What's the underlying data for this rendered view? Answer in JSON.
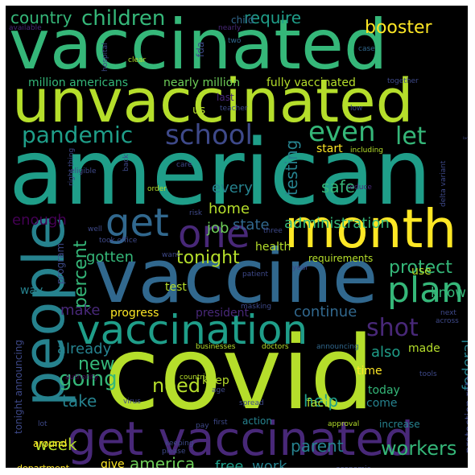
{
  "colors": {
    "background": "#000000",
    "palette": [
      "#440154",
      "#482878",
      "#3e4989",
      "#31688e",
      "#26828e",
      "#1f9e89",
      "#35b779",
      "#6ece58",
      "#b5de2b",
      "#fde725"
    ]
  },
  "words": [
    {
      "text": "vaccinated",
      "color": "#35b779"
    },
    {
      "text": "unvaccinated",
      "color": "#b5de2b"
    },
    {
      "text": "american",
      "color": "#1f9e89"
    },
    {
      "text": "covid",
      "color": "#b5de2b"
    },
    {
      "text": "vaccine",
      "color": "#31688e"
    },
    {
      "text": "people",
      "color": "#26828e"
    },
    {
      "text": "month",
      "color": "#fde725"
    },
    {
      "text": "get vaccinated",
      "color": "#482878"
    },
    {
      "text": "vaccination",
      "color": "#1f9e89"
    },
    {
      "text": "get",
      "color": "#31688e"
    },
    {
      "text": "one",
      "color": "#482878"
    },
    {
      "text": "plan",
      "color": "#35b779"
    },
    {
      "text": "school",
      "color": "#3e4989"
    },
    {
      "text": "even",
      "color": "#35b779"
    },
    {
      "text": "pandemic",
      "color": "#1f9e89"
    },
    {
      "text": "let",
      "color": "#35b779"
    },
    {
      "text": "shot",
      "color": "#482878"
    },
    {
      "text": "children",
      "color": "#35b779"
    },
    {
      "text": "country",
      "color": "#35b779"
    },
    {
      "text": "require",
      "color": "#1f9e89"
    },
    {
      "text": "booster",
      "color": "#fde725"
    },
    {
      "text": "going",
      "color": "#35b779"
    },
    {
      "text": "protect",
      "color": "#35b779"
    },
    {
      "text": "need",
      "color": "#b5de2b"
    },
    {
      "text": "tonight",
      "color": "#b5de2b"
    },
    {
      "text": "percent",
      "color": "#35b779"
    },
    {
      "text": "testing",
      "color": "#26828e"
    },
    {
      "text": "workers",
      "color": "#35b779"
    },
    {
      "text": "america",
      "color": "#6ece58"
    },
    {
      "text": "new",
      "color": "#35b779"
    },
    {
      "text": "take",
      "color": "#26828e"
    },
    {
      "text": "safe",
      "color": "#35b779"
    },
    {
      "text": "every",
      "color": "#26828e"
    },
    {
      "text": "home",
      "color": "#b5de2b"
    },
    {
      "text": "job",
      "color": "#6ece58"
    },
    {
      "text": "state",
      "color": "#31688e"
    },
    {
      "text": "administration",
      "color": "#35b779"
    },
    {
      "text": "gotten",
      "color": "#35b779"
    },
    {
      "text": "help",
      "color": "#1f9e89"
    },
    {
      "text": "parent",
      "color": "#26828e"
    },
    {
      "text": "week",
      "color": "#b5de2b"
    },
    {
      "text": "free",
      "color": "#1f9e89"
    },
    {
      "text": "work",
      "color": "#26828e"
    },
    {
      "text": "know",
      "color": "#35b779"
    },
    {
      "text": "federal",
      "color": "#26828e"
    },
    {
      "text": "also",
      "color": "#1f9e89"
    },
    {
      "text": "already",
      "color": "#26828e"
    },
    {
      "text": "make",
      "color": "#482878"
    },
    {
      "text": "continue",
      "color": "#31688e"
    },
    {
      "text": "enough",
      "color": "#440154"
    },
    {
      "text": "fully vaccinated",
      "color": "#b5de2b"
    },
    {
      "text": "million americans",
      "color": "#35b779"
    },
    {
      "text": "nearly million",
      "color": "#6ece58"
    },
    {
      "text": "progress",
      "color": "#fde725"
    },
    {
      "text": "test",
      "color": "#b5de2b"
    },
    {
      "text": "us",
      "color": "#b5de2b"
    },
    {
      "text": "start",
      "color": "#fde725"
    },
    {
      "text": "made",
      "color": "#b5de2b"
    },
    {
      "text": "time",
      "color": "#fde725"
    },
    {
      "text": "fact",
      "color": "#b5de2b"
    },
    {
      "text": "keep",
      "color": "#b5de2b"
    },
    {
      "text": "today",
      "color": "#35b779"
    },
    {
      "text": "come",
      "color": "#26828e"
    },
    {
      "text": "give",
      "color": "#fde725"
    },
    {
      "text": "president",
      "color": "#482878"
    },
    {
      "text": "health",
      "color": "#b5de2b"
    },
    {
      "text": "way",
      "color": "#26828e"
    },
    {
      "text": "use",
      "color": "#b5de2b"
    },
    {
      "text": "program",
      "color": "#3e4989"
    },
    {
      "text": "requirements",
      "color": "#b5de2b"
    },
    {
      "text": "action",
      "color": "#26828e"
    },
    {
      "text": "increase",
      "color": "#26828e"
    },
    {
      "text": "protection rate",
      "color": "#3e4989"
    },
    {
      "text": "around",
      "color": "#fde725"
    },
    {
      "text": "department",
      "color": "#fde725"
    },
    {
      "text": "tonight announcing",
      "color": "#3e4989"
    },
    {
      "text": "child",
      "color": "#31688e"
    },
    {
      "text": "two",
      "color": "#31688e"
    },
    {
      "text": "fda",
      "color": "#3e4989"
    },
    {
      "text": "case",
      "color": "#31688e"
    },
    {
      "text": "clear",
      "color": "#b5de2b"
    },
    {
      "text": "hospital",
      "color": "#3e4989"
    },
    {
      "text": "together",
      "color": "#3e4989"
    },
    {
      "text": "last",
      "color": "#482878"
    },
    {
      "text": "teacher",
      "color": "#3e4989"
    },
    {
      "text": "low",
      "color": "#3e4989"
    },
    {
      "text": "large",
      "color": "#3e4989"
    },
    {
      "text": "eligible",
      "color": "#3e4989"
    },
    {
      "text": "care",
      "color": "#3e4989"
    },
    {
      "text": "including",
      "color": "#b5de2b"
    },
    {
      "text": "back",
      "color": "#3e4989"
    },
    {
      "text": "right thing",
      "color": "#3e4989"
    },
    {
      "text": "order",
      "color": "#b5de2b"
    },
    {
      "text": "reduce",
      "color": "#482878"
    },
    {
      "text": "delta variant",
      "color": "#3e4989"
    },
    {
      "text": "vaccination rate",
      "color": "#35b779"
    },
    {
      "text": "risk",
      "color": "#3e4989"
    },
    {
      "text": "well",
      "color": "#3e4989"
    },
    {
      "text": "took office",
      "color": "#3e4989"
    },
    {
      "text": "want",
      "color": "#3e4989"
    },
    {
      "text": "patient",
      "color": "#3e4989"
    },
    {
      "text": "three",
      "color": "#3e4989"
    },
    {
      "text": "year",
      "color": "#3e4989"
    },
    {
      "text": "masking",
      "color": "#3e4989"
    },
    {
      "text": "next",
      "color": "#3e4989"
    },
    {
      "text": "across",
      "color": "#3e4989"
    },
    {
      "text": "businesses",
      "color": "#b5de2b"
    },
    {
      "text": "doctors",
      "color": "#b5de2b"
    },
    {
      "text": "announcing",
      "color": "#31688e"
    },
    {
      "text": "tools",
      "color": "#3e4989"
    },
    {
      "text": "authority",
      "color": "#440154"
    },
    {
      "text": "countries",
      "color": "#b5de2b"
    },
    {
      "text": "age",
      "color": "#3e4989"
    },
    {
      "text": "virus",
      "color": "#3e4989"
    },
    {
      "text": "spread",
      "color": "#3e4989"
    },
    {
      "text": "lot",
      "color": "#3e4989"
    },
    {
      "text": "pay",
      "color": "#3e4989"
    },
    {
      "text": "first",
      "color": "#3e4989"
    },
    {
      "text": "approval",
      "color": "#b5de2b"
    },
    {
      "text": "keeping",
      "color": "#3e4989"
    },
    {
      "text": "please",
      "color": "#3e4989"
    },
    {
      "text": "economic",
      "color": "#3e4989"
    },
    {
      "text": "nearly",
      "color": "#482878"
    },
    {
      "text": "available",
      "color": "#482878"
    }
  ]
}
